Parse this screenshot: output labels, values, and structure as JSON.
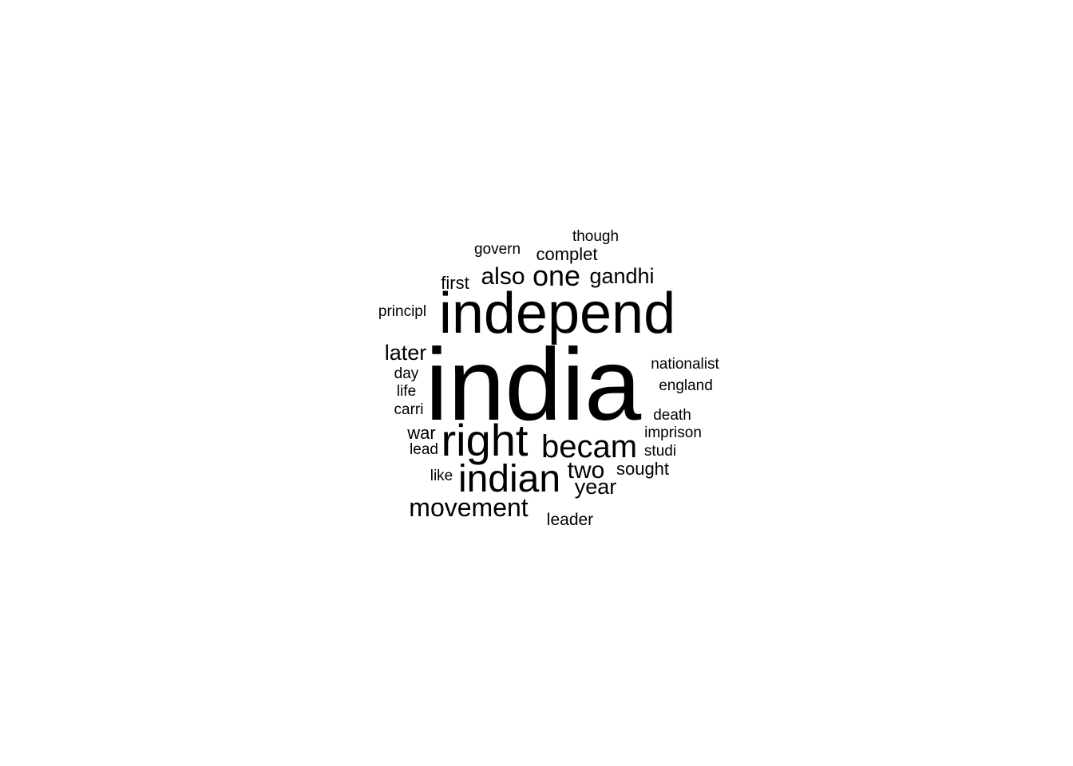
{
  "chart_data": {
    "type": "wordcloud",
    "title": "",
    "words": [
      {
        "text": "india",
        "weight": 100
      },
      {
        "text": "independ",
        "weight": 60
      },
      {
        "text": "right",
        "weight": 48
      },
      {
        "text": "indian",
        "weight": 42
      },
      {
        "text": "becam",
        "weight": 36
      },
      {
        "text": "movement",
        "weight": 30
      },
      {
        "text": "one",
        "weight": 30
      },
      {
        "text": "also",
        "weight": 27
      },
      {
        "text": "two",
        "weight": 27
      },
      {
        "text": "year",
        "weight": 25
      },
      {
        "text": "gandhi",
        "weight": 25
      },
      {
        "text": "later",
        "weight": 25
      },
      {
        "text": "complet",
        "weight": 21
      },
      {
        "text": "first",
        "weight": 21
      },
      {
        "text": "war",
        "weight": 21
      },
      {
        "text": "sought",
        "weight": 21
      },
      {
        "text": "leader",
        "weight": 20
      },
      {
        "text": "govern",
        "weight": 18
      },
      {
        "text": "though",
        "weight": 18
      },
      {
        "text": "principl",
        "weight": 18
      },
      {
        "text": "nationalist",
        "weight": 18
      },
      {
        "text": "england",
        "weight": 18
      },
      {
        "text": "day",
        "weight": 18
      },
      {
        "text": "life",
        "weight": 18
      },
      {
        "text": "carri",
        "weight": 18
      },
      {
        "text": "death",
        "weight": 18
      },
      {
        "text": "imprison",
        "weight": 18
      },
      {
        "text": "lead",
        "weight": 18
      },
      {
        "text": "studi",
        "weight": 18
      },
      {
        "text": "like",
        "weight": 18
      }
    ]
  }
}
